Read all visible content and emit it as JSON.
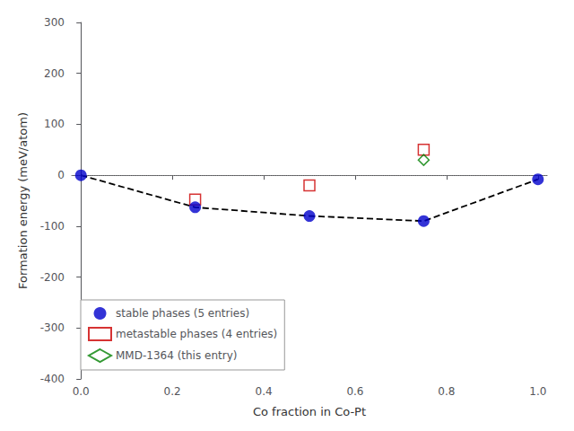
{
  "chart_data": {
    "type": "scatter",
    "xlabel": "Co fraction in Co-Pt",
    "ylabel": "Formation energy (meV/atom)",
    "xlim": [
      -0.02,
      1.02
    ],
    "ylim": [
      -400,
      300
    ],
    "xticks": [
      {
        "value": 0.0,
        "label": "0.0"
      },
      0.2,
      0.4,
      0.6,
      0.8,
      {
        "value": 1.0,
        "label": "1.0"
      }
    ],
    "yticks": [
      -400,
      -300,
      -200,
      -100,
      0,
      100,
      200,
      300
    ],
    "grid": false,
    "legend": "lower left",
    "hlines": [
      {
        "value": 0,
        "color": "gray",
        "line_style": "dotted"
      }
    ],
    "series": [
      {
        "type": "line",
        "line_style": "dashed",
        "color": "black",
        "x": [
          0.0,
          0.25,
          0.5,
          0.75,
          1.0
        ],
        "values": [
          0.0,
          -63.0,
          -80.0,
          -90.0,
          -8.0
        ]
      },
      {
        "name": "stable phases (5 entries)",
        "type": "scatter",
        "marker": "circle",
        "color": "#0000cc",
        "x": [
          0.0,
          0.25,
          0.5,
          0.75,
          1.0
        ],
        "values": [
          0.0,
          -63.0,
          -80.0,
          -90.0,
          -8.0
        ]
      },
      {
        "name": "metastable phases (4 entries)",
        "type": "scatter",
        "marker": "open_square",
        "color": "#cc0000",
        "x": [
          0.25,
          0.5,
          0.75
        ],
        "values": [
          -48.0,
          -20.0,
          50.0
        ]
      },
      {
        "name": "MMD-1364 (this entry)",
        "type": "scatter",
        "marker": "open_diamond",
        "color": "#008000",
        "x": [
          0.75
        ],
        "values": [
          30.0
        ]
      }
    ]
  }
}
